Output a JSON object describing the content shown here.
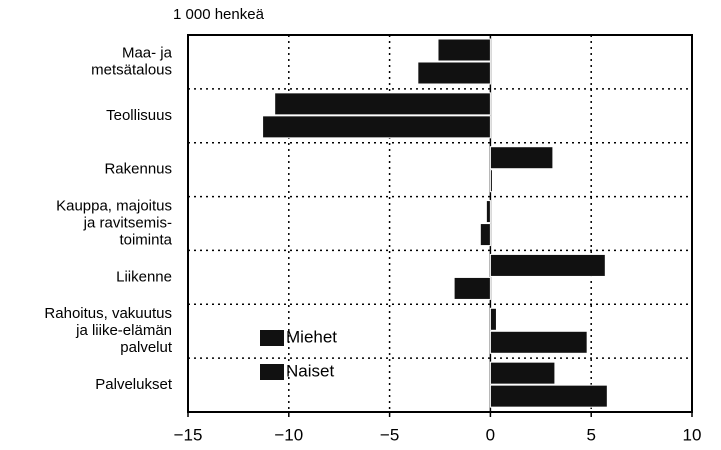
{
  "chart_data": {
    "type": "hbar",
    "title": "1 000 henkeä",
    "categories": [
      "Maa- ja\nmetsätalous",
      "Teollisuus",
      "Rakennus",
      "Kauppa, majoitus\nja ravitsemis-\ntoiminta",
      "Liikenne",
      "Rahoitus, vakuutus\nja liike-elämän\npalvelut",
      "Palvelukset"
    ],
    "series": [
      {
        "name": "Miehet",
        "color": "#111111",
        "values": [
          -2.6,
          -10.7,
          3.1,
          -0.2,
          5.7,
          0.3,
          3.2
        ]
      },
      {
        "name": "Naiset",
        "color": "#111111",
        "values": [
          -3.6,
          -11.3,
          0.1,
          -0.5,
          -1.8,
          4.8,
          5.8
        ]
      }
    ],
    "xlim": [
      -15,
      10
    ],
    "xticks": [
      {
        "value": -15,
        "label": "−15"
      },
      {
        "value": -10,
        "label": "−10"
      },
      {
        "value": -5,
        "label": "−5"
      },
      0,
      5,
      10
    ],
    "grid": true,
    "legend": "lower left"
  }
}
